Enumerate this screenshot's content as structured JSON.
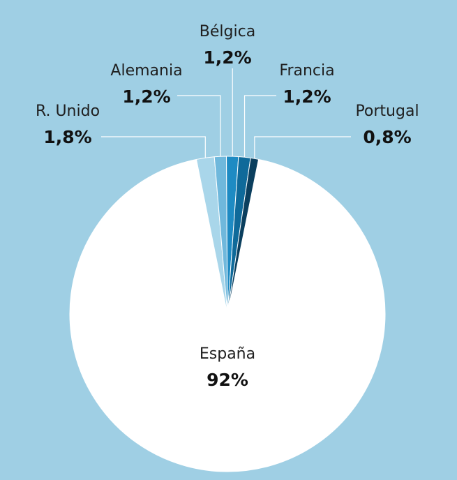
{
  "chart_data": {
    "type": "pie",
    "slices": [
      {
        "label": "España",
        "value": 92,
        "display": "92%",
        "color": "#ffffff"
      },
      {
        "label": "R. Unido",
        "value": 1.8,
        "display": "1,8%",
        "color": "#a9d6ea"
      },
      {
        "label": "Alemania",
        "value": 1.2,
        "display": "1,2%",
        "color": "#6fb8dc"
      },
      {
        "label": "Bélgica",
        "value": 1.2,
        "display": "1,2%",
        "color": "#1e8bc3"
      },
      {
        "label": "Francia",
        "value": 1.2,
        "display": "1,2%",
        "color": "#0f6a9a"
      },
      {
        "label": "Portugal",
        "value": 0.8,
        "display": "0,8%",
        "color": "#0b3f5e"
      }
    ],
    "background": "#9fcfe4"
  }
}
